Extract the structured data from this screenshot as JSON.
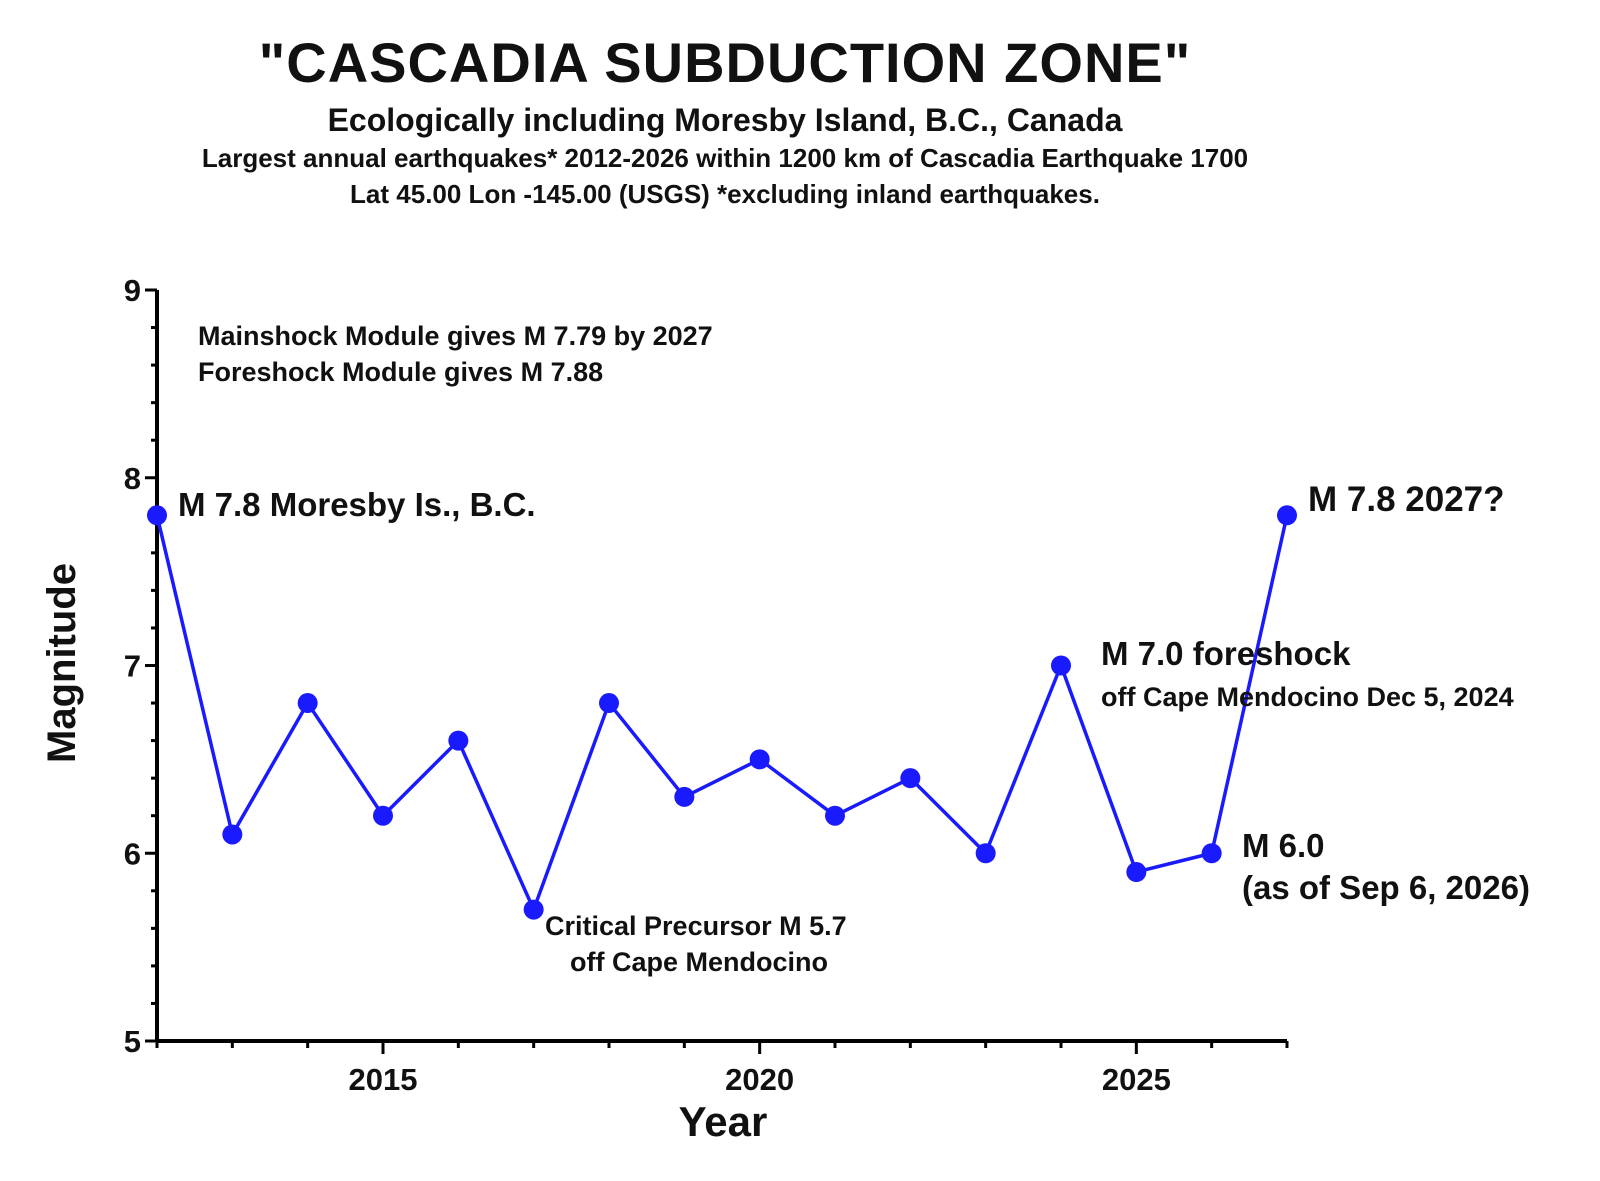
{
  "header": {
    "title": "\"CASCADIA SUBDUCTION ZONE\"",
    "subtitle": "Ecologically including Moresby Island, B.C., Canada",
    "description_line1": "Largest annual earthquakes* 2012-2026 within 1200 km of Cascadia Earthquake 1700",
    "description_line2": "Lat 45.00 Lon -145.00 (USGS) *excluding inland earthquakes."
  },
  "chart_data": {
    "type": "line",
    "xlabel": "Year",
    "ylabel": "Magnitude",
    "xlim": [
      2012,
      2027
    ],
    "ylim": [
      5,
      9
    ],
    "x_ticks": [
      2015,
      2020,
      2025
    ],
    "y_ticks": [
      5,
      6,
      7,
      8,
      9
    ],
    "grid": false,
    "series": [
      {
        "color": "#1a1aff",
        "points": [
          {
            "x": 2012,
            "y": 7.8
          },
          {
            "x": 2013,
            "y": 6.1
          },
          {
            "x": 2014,
            "y": 6.8
          },
          {
            "x": 2015,
            "y": 6.2
          },
          {
            "x": 2016,
            "y": 6.6
          },
          {
            "x": 2017,
            "y": 5.7
          },
          {
            "x": 2018,
            "y": 6.8
          },
          {
            "x": 2019,
            "y": 6.3
          },
          {
            "x": 2020,
            "y": 6.5
          },
          {
            "x": 2021,
            "y": 6.2
          },
          {
            "x": 2022,
            "y": 6.4
          },
          {
            "x": 2023,
            "y": 6.0
          },
          {
            "x": 2024,
            "y": 7.0
          },
          {
            "x": 2025,
            "y": 5.9
          },
          {
            "x": 2026,
            "y": 6.0
          },
          {
            "x": 2027,
            "y": 7.8
          }
        ]
      }
    ],
    "annotations": {
      "module_line1": "Mainshock Module gives M 7.79 by 2027",
      "module_line2": "Foreshock Module gives M 7.88",
      "moresby": "M 7.8 Moresby Is., B.C.",
      "forecast": "M 7.8 2027?",
      "foreshock_line1": "M 7.0 foreshock",
      "foreshock_line2": "off Cape Mendocino Dec 5, 2024",
      "precursor_line1": "Critical Precursor M 5.7",
      "precursor_line2": "off Cape Mendocino",
      "current_line1": "M 6.0",
      "current_line2": "(as of Sep 6, 2026)"
    },
    "forecast_color": "#ff1a1a"
  }
}
